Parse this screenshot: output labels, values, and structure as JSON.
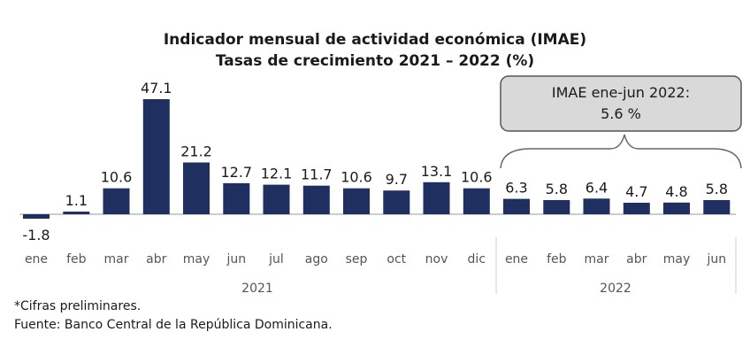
{
  "chart_data": {
    "type": "bar",
    "title": "Indicador mensual de actividad económica (IMAE)",
    "subtitle": "Tasas de crecimiento 2021 – 2022 (%)",
    "categories": [
      "ene",
      "feb",
      "mar",
      "abr",
      "may",
      "jun",
      "jul",
      "ago",
      "sep",
      "oct",
      "nov",
      "dic",
      "ene",
      "feb",
      "mar",
      "abr",
      "may",
      "jun"
    ],
    "values": [
      -1.8,
      1.1,
      10.6,
      47.1,
      21.2,
      12.7,
      12.1,
      11.7,
      10.6,
      9.7,
      13.1,
      10.6,
      6.3,
      5.8,
      6.4,
      4.7,
      4.8,
      5.8
    ],
    "value_labels": [
      "-1.8",
      "1.1",
      "10.6",
      "47.1",
      "21.2",
      "12.7",
      "12.1",
      "11.7",
      "10.6",
      "9.7",
      "13.1",
      "10.6",
      "6.3",
      "5.8",
      "6.4",
      "4.7",
      "4.8",
      "5.8"
    ],
    "groups": [
      {
        "label": "2021",
        "start": 0,
        "end": 11
      },
      {
        "label": "2022",
        "start": 12,
        "end": 17
      }
    ],
    "callout": {
      "line1": "IMAE ene-jun 2022:",
      "line2": "5.6 %",
      "covers": [
        12,
        17
      ]
    },
    "bar_color": "#1f3060",
    "xlabel": "",
    "ylabel": "",
    "ylim": [
      -1.8,
      47.1
    ],
    "grid": false
  },
  "notes": {
    "footnote": "*Cifras preliminares.",
    "source": "Fuente: Banco Central de la República Dominicana."
  }
}
